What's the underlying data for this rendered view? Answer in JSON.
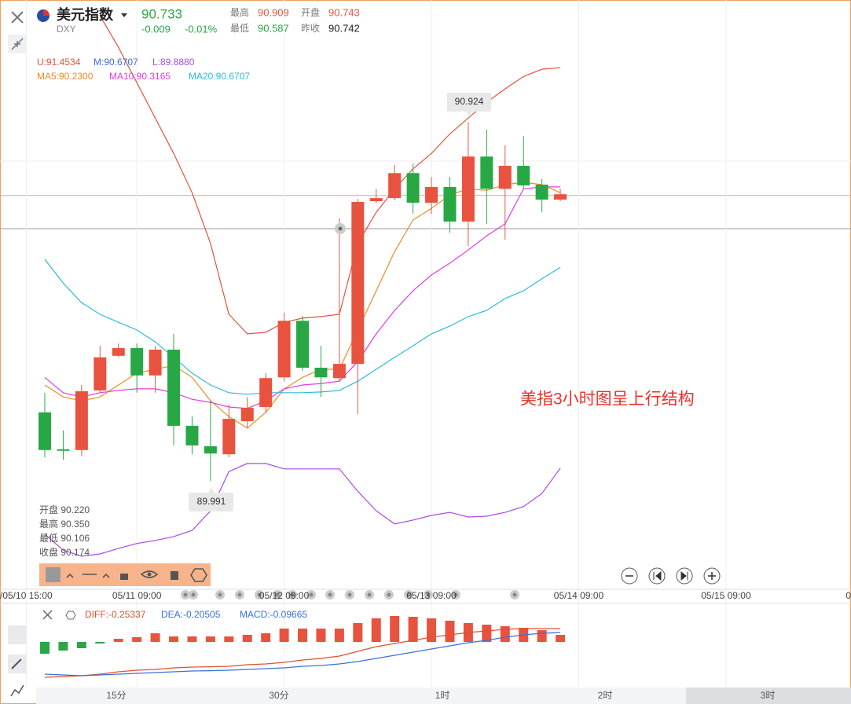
{
  "header": {
    "name": "美元指数",
    "code": "DXY",
    "price": 90.733,
    "change": -0.009,
    "change_pct": "-0.01%",
    "high_label": "最高",
    "high": 90.909,
    "open_label": "开盘",
    "open": 90.743,
    "low_label": "最低",
    "low": 90.587,
    "prev_label": "昨收",
    "prev": 90.742
  },
  "chart_data": {
    "type": "candlestick",
    "ylim": [
      89.709,
      91.241
    ],
    "up_color": "#e8533f",
    "down_color": "#27a845",
    "open": [
      90.169,
      90.073,
      90.071,
      90.226,
      90.316,
      90.336,
      90.265,
      90.332,
      90.134,
      90.081,
      90.06,
      90.146,
      90.183,
      90.26,
      90.407,
      90.285,
      90.258,
      90.295,
      90.718,
      90.726,
      90.791,
      90.714,
      90.755,
      90.665,
      90.834,
      90.75,
      90.81,
      90.761,
      90.722
    ],
    "high": [
      90.22,
      90.122,
      90.24,
      90.342,
      90.348,
      90.348,
      90.342,
      90.373,
      90.158,
      90.199,
      90.189,
      90.209,
      90.271,
      90.428,
      90.42,
      90.342,
      90.673,
      90.724,
      90.75,
      90.812,
      90.816,
      90.781,
      90.781,
      90.924,
      90.904,
      90.863,
      90.887,
      90.775,
      90.75
    ],
    "low": [
      90.052,
      90.046,
      90.056,
      90.22,
      90.312,
      90.22,
      90.22,
      90.083,
      90.06,
      89.991,
      90.052,
      90.128,
      90.169,
      90.25,
      90.277,
      90.209,
      90.25,
      90.164,
      90.714,
      90.72,
      90.685,
      90.685,
      90.636,
      90.601,
      90.659,
      90.618,
      90.75,
      90.689,
      90.718
    ],
    "close": [
      90.071,
      90.069,
      90.224,
      90.312,
      90.336,
      90.265,
      90.332,
      90.134,
      90.083,
      90.062,
      90.152,
      90.181,
      90.258,
      90.407,
      90.285,
      90.26,
      90.295,
      90.716,
      90.726,
      90.791,
      90.714,
      90.755,
      90.665,
      90.834,
      90.75,
      90.81,
      90.759,
      90.722,
      90.736
    ],
    "series": [
      {
        "legend": "U:91.4534",
        "color": "#e0533d",
        "values": [
          null,
          null,
          null,
          91.2,
          91.118,
          91.026,
          90.934,
          90.842,
          90.74,
          90.608,
          90.424,
          90.373,
          90.377,
          90.403,
          90.414,
          90.418,
          90.424,
          90.608,
          90.689,
          90.75,
          90.802,
          90.842,
          90.893,
          90.934,
          90.975,
          91.01,
          91.042,
          91.061,
          91.065
        ]
      },
      {
        "legend": "M:90.6707",
        "color": "#3a6fe0",
        "values": []
      },
      {
        "legend": "L:89.8880",
        "color": "#a64be8",
        "values": [
          89.852,
          89.811,
          89.795,
          89.801,
          89.815,
          89.828,
          89.836,
          89.846,
          89.862,
          89.913,
          90.015,
          90.036,
          90.036,
          90.022,
          90.022,
          90.022,
          90.022,
          89.964,
          89.913,
          89.879,
          89.889,
          89.901,
          89.909,
          89.897,
          89.899,
          89.909,
          89.924,
          89.958,
          90.024
        ]
      },
      {
        "legend": "MA5:90.2300",
        "color": "#f08a24",
        "values": [
          90.24,
          90.209,
          90.199,
          90.209,
          90.24,
          90.271,
          90.281,
          90.291,
          90.26,
          90.199,
          90.158,
          90.128,
          90.169,
          90.23,
          90.26,
          90.281,
          90.281,
          90.383,
          90.485,
          90.587,
          90.669,
          90.699,
          90.734,
          90.75,
          90.746,
          90.761,
          90.767,
          90.761,
          90.74
        ]
      },
      {
        "legend": "MA10:90.3165",
        "color": "#e23ce0",
        "values": [
          90.26,
          90.22,
          90.209,
          90.22,
          90.226,
          90.23,
          90.23,
          90.22,
          90.203,
          90.195,
          90.183,
          90.179,
          90.199,
          90.23,
          90.24,
          90.244,
          90.25,
          90.301,
          90.373,
          90.434,
          90.485,
          90.526,
          90.557,
          90.591,
          90.628,
          90.659,
          90.75,
          90.755,
          90.755
        ]
      },
      {
        "legend": "MA20:90.6707",
        "color": "#2cbbd8",
        "values": [
          90.567,
          90.505,
          90.454,
          90.424,
          90.403,
          90.383,
          90.352,
          90.312,
          90.271,
          90.24,
          90.22,
          90.216,
          90.22,
          90.22,
          90.22,
          90.222,
          90.226,
          90.25,
          90.281,
          90.312,
          90.342,
          90.373,
          90.393,
          90.418,
          90.434,
          90.465,
          90.485,
          90.516,
          90.546
        ]
      }
    ],
    "high_callout": "90.924",
    "low_callout": "89.991",
    "annotation": "美指3小时图呈上行结构",
    "info": [
      "开盘 90.220",
      "最高 90.350",
      "最低 90.106",
      "收盘 90.174"
    ],
    "xticks": [
      {
        "value": -1,
        "label": "/05/10 15:00"
      },
      {
        "value": 5,
        "label": "05/11 09:00"
      },
      {
        "value": 13,
        "label": "05/12 09:00"
      },
      {
        "value": 21,
        "label": "05/13 09:00"
      },
      {
        "value": 29,
        "label": "05/14 09:00"
      },
      {
        "value": 37,
        "label": "05/15 09:00"
      },
      {
        "value": 45,
        "label": "0"
      }
    ],
    "macd": {
      "ylim": [
        -0.24,
        0.235
      ],
      "legend": "MACD:-0.09665",
      "histogram": [
        -0.075,
        -0.055,
        -0.04,
        -0.01,
        0.02,
        0.03,
        0.055,
        0.035,
        0.035,
        0.035,
        0.035,
        0.045,
        0.055,
        0.085,
        0.085,
        0.085,
        0.085,
        0.12,
        0.15,
        0.165,
        0.16,
        0.15,
        0.135,
        0.12,
        0.11,
        0.1,
        0.09,
        0.075,
        0.045
      ],
      "lines": [
        {
          "legend": "DIFF:-0.25337",
          "color": "#e05030",
          "values": [
            -0.225,
            -0.22,
            -0.215,
            -0.205,
            -0.19,
            -0.18,
            -0.175,
            -0.165,
            -0.16,
            -0.158,
            -0.155,
            -0.145,
            -0.14,
            -0.13,
            -0.115,
            -0.105,
            -0.09,
            -0.06,
            -0.03,
            -0.01,
            0.01,
            0.03,
            0.045,
            0.06,
            0.07,
            0.08,
            0.085,
            0.085,
            0.085
          ]
        },
        {
          "legend": "DEA:-0.20505",
          "color": "#3a6fe0",
          "values": [
            -0.205,
            -0.21,
            -0.215,
            -0.21,
            -0.205,
            -0.2,
            -0.195,
            -0.19,
            -0.185,
            -0.183,
            -0.18,
            -0.175,
            -0.17,
            -0.165,
            -0.155,
            -0.15,
            -0.14,
            -0.125,
            -0.105,
            -0.085,
            -0.065,
            -0.045,
            -0.025,
            -0.005,
            0.01,
            0.03,
            0.045,
            0.055,
            0.06
          ]
        }
      ]
    }
  },
  "timeline": [
    "15分",
    "30分",
    "1时",
    "2时",
    "3时"
  ]
}
